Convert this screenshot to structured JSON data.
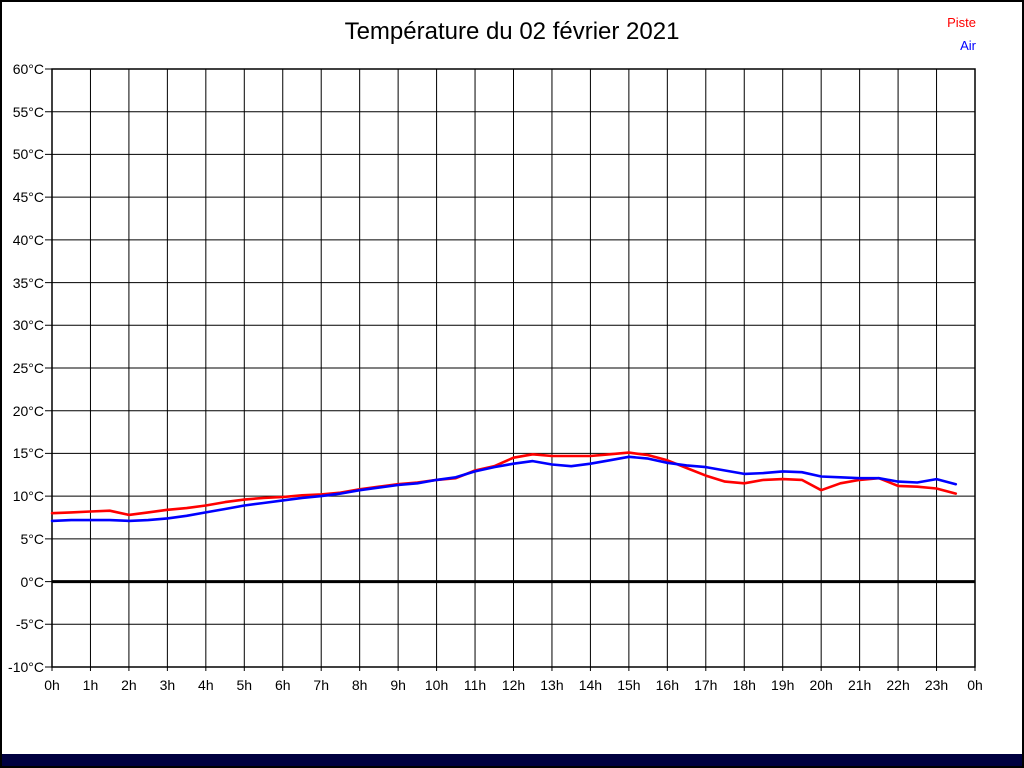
{
  "page": {
    "background": "#ffffff",
    "border_color": "#000000",
    "bottom_bar_color": "#000040"
  },
  "title": "Température du 02 février 2021",
  "legend": [
    {
      "label": "Piste",
      "color": "#ff0000"
    },
    {
      "label": "Air",
      "color": "#0000ff"
    }
  ],
  "chart_data": {
    "type": "line",
    "title": "Température du 02 février 2021",
    "xlabel": "",
    "ylabel": "",
    "xlim": [
      0,
      24
    ],
    "ylim": [
      -10,
      60
    ],
    "grid": true,
    "grid_color": "#000000",
    "zero_line": {
      "value": 0,
      "bold": true,
      "color": "#000000"
    },
    "x_ticks": [
      0,
      1,
      2,
      3,
      4,
      5,
      6,
      7,
      8,
      9,
      10,
      11,
      12,
      13,
      14,
      15,
      16,
      17,
      18,
      19,
      20,
      21,
      22,
      23,
      24
    ],
    "x_tick_labels": [
      "0h",
      "1h",
      "2h",
      "3h",
      "4h",
      "5h",
      "6h",
      "7h",
      "8h",
      "9h",
      "10h",
      "11h",
      "12h",
      "13h",
      "14h",
      "15h",
      "16h",
      "17h",
      "18h",
      "19h",
      "20h",
      "21h",
      "22h",
      "23h",
      "0h"
    ],
    "y_ticks": [
      60,
      55,
      50,
      45,
      40,
      35,
      30,
      25,
      20,
      15,
      10,
      5,
      0,
      -5,
      -10
    ],
    "y_tick_labels": [
      "60°C",
      "55°C",
      "50°C",
      "45°C",
      "40°C",
      "35°C",
      "30°C",
      "25°C",
      "20°C",
      "15°C",
      "10°C",
      "5°C",
      "0°C",
      "-5°C",
      "-10°C"
    ],
    "legend_position": "top-right",
    "x": [
      0,
      0.5,
      1,
      1.5,
      2,
      2.5,
      3,
      3.5,
      4,
      4.5,
      5,
      5.5,
      6,
      6.5,
      7,
      7.5,
      8,
      8.5,
      9,
      9.5,
      10,
      10.5,
      11,
      11.5,
      12,
      12.5,
      13,
      13.5,
      14,
      14.5,
      15,
      15.5,
      16,
      16.5,
      17,
      17.5,
      18,
      18.5,
      19,
      19.5,
      20,
      20.5,
      21,
      21.5,
      22,
      22.5,
      23,
      23.5
    ],
    "series": [
      {
        "name": "Piste",
        "color": "#ff0000",
        "values": [
          8.0,
          8.1,
          8.2,
          8.3,
          7.8,
          8.1,
          8.4,
          8.6,
          8.9,
          9.3,
          9.6,
          9.8,
          9.9,
          10.1,
          10.2,
          10.4,
          10.8,
          11.1,
          11.4,
          11.6,
          11.9,
          12.1,
          13.0,
          13.5,
          14.5,
          14.9,
          14.7,
          14.7,
          14.7,
          14.9,
          15.1,
          14.8,
          14.2,
          13.3,
          12.4,
          11.7,
          11.5,
          11.9,
          12.0,
          11.9,
          10.7,
          11.5,
          11.9,
          12.1,
          11.2,
          11.1,
          10.9,
          10.3
        ]
      },
      {
        "name": "Air",
        "color": "#0000ff",
        "values": [
          7.1,
          7.2,
          7.2,
          7.2,
          7.1,
          7.2,
          7.4,
          7.7,
          8.1,
          8.5,
          8.9,
          9.2,
          9.5,
          9.8,
          10.0,
          10.3,
          10.7,
          11.0,
          11.3,
          11.5,
          11.9,
          12.2,
          12.9,
          13.4,
          13.8,
          14.1,
          13.7,
          13.5,
          13.8,
          14.2,
          14.6,
          14.4,
          13.9,
          13.6,
          13.4,
          13.0,
          12.6,
          12.7,
          12.9,
          12.8,
          12.3,
          12.2,
          12.1,
          12.1,
          11.7,
          11.6,
          12.0,
          11.4
        ]
      }
    ]
  }
}
